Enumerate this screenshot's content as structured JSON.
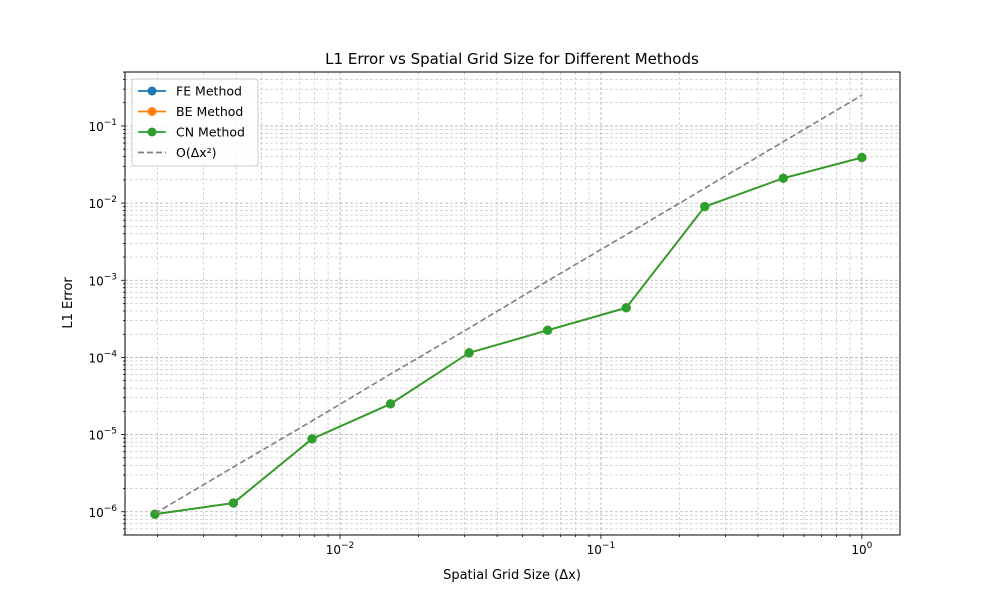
{
  "chart_data": {
    "type": "line",
    "title": "L1 Error vs Spatial Grid Size for Different Methods",
    "xlabel": "Spatial Grid Size (Δx)",
    "ylabel": "L1 Error",
    "xscale": "log",
    "yscale": "log",
    "xlim": [
      0.0015,
      1.4
    ],
    "ylim": [
      5e-07,
      0.5
    ],
    "grid": true,
    "legend_position": "top-left",
    "x_ticks": [
      {
        "value": 0.01,
        "base": "10",
        "exp": "−2"
      },
      {
        "value": 0.1,
        "base": "10",
        "exp": "−1"
      },
      {
        "value": 1,
        "base": "10",
        "exp": "0"
      }
    ],
    "y_ticks": [
      {
        "value": 1e-06,
        "base": "10",
        "exp": "−6"
      },
      {
        "value": 1e-05,
        "base": "10",
        "exp": "−5"
      },
      {
        "value": 0.0001,
        "base": "10",
        "exp": "−4"
      },
      {
        "value": 0.001,
        "base": "10",
        "exp": "−3"
      },
      {
        "value": 0.01,
        "base": "10",
        "exp": "−2"
      },
      {
        "value": 0.1,
        "base": "10",
        "exp": "−1"
      }
    ],
    "x": [
      0.001953,
      0.003906,
      0.007813,
      0.015625,
      0.03125,
      0.0625,
      0.125,
      0.25,
      0.5,
      1.0
    ],
    "series": [
      {
        "name": "FE Method",
        "color": "#1f77b4",
        "style": "solid",
        "marker": "circle",
        "values": [
          9.3e-07,
          1.3e-06,
          8.8e-06,
          2.5e-05,
          0.000115,
          0.000225,
          0.00044,
          0.009,
          0.021,
          0.039
        ]
      },
      {
        "name": "BE Method",
        "color": "#ff7f0e",
        "style": "solid",
        "marker": "circle",
        "values": [
          9.3e-07,
          1.3e-06,
          8.8e-06,
          2.5e-05,
          0.000115,
          0.000225,
          0.00044,
          0.009,
          0.021,
          0.039
        ]
      },
      {
        "name": "CN Method",
        "color": "#2ca02c",
        "style": "solid",
        "marker": "circle",
        "values": [
          9.3e-07,
          1.3e-06,
          8.8e-06,
          2.5e-05,
          0.000115,
          0.000225,
          0.00044,
          0.009,
          0.021,
          0.039
        ]
      },
      {
        "name": "O(Δx²)",
        "color": "#808080",
        "style": "dashed",
        "marker": "none",
        "values": [
          9.5e-07,
          3.8e-06,
          1.5e-05,
          6.1e-05,
          0.00024,
          0.00098,
          0.0039,
          0.0156,
          0.0625,
          0.25
        ]
      }
    ]
  }
}
